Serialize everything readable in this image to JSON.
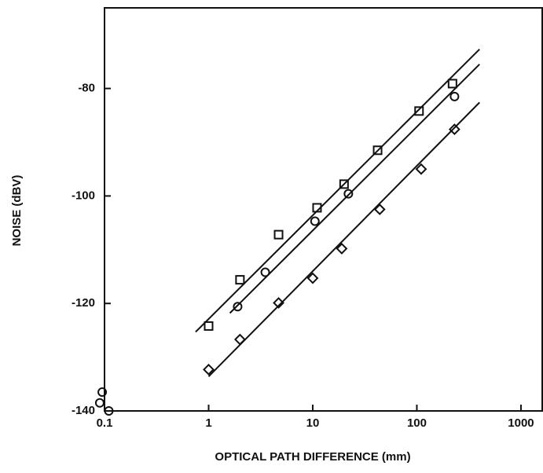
{
  "chart_data": {
    "type": "scatter",
    "xlabel": "OPTICAL PATH DIFFERENCE (mm)",
    "ylabel": "NOISE (dBV)",
    "xscale": "log",
    "xlim": [
      0.1,
      1600
    ],
    "ylim": [
      -140,
      -65
    ],
    "xticks": [
      0.1,
      1,
      10,
      100,
      1000
    ],
    "yticks": [
      -80,
      -100,
      -120,
      -140
    ],
    "color": "#111111",
    "series": [
      {
        "marker": "square",
        "x": [
          1,
          2,
          4.7,
          11,
          20,
          42,
          105,
          220
        ],
        "values": [
          -124.2,
          -115.6,
          -107.2,
          -102.2,
          -97.8,
          -91.5,
          -84.2,
          -79.1
        ],
        "fit": {
          "x": [
            0.75,
            400
          ],
          "values": [
            -125.3,
            -72.7
          ]
        }
      },
      {
        "marker": "circle",
        "x": [
          0.095,
          0.09,
          0.11,
          1.9,
          3.5,
          10.5,
          22,
          230
        ],
        "values": [
          -136.5,
          -138.5,
          -140,
          -120.6,
          -114.2,
          -104.7,
          -99.6,
          -81.5
        ],
        "fit": {
          "x": [
            1.6,
            400
          ],
          "values": [
            -121.8,
            -75.5
          ]
        }
      },
      {
        "marker": "diamond",
        "x": [
          1,
          2,
          4.7,
          10,
          19,
          44,
          110,
          230
        ],
        "values": [
          -132.3,
          -126.7,
          -119.9,
          -115.3,
          -109.8,
          -102.5,
          -95.0,
          -87.6
        ],
        "fit": {
          "x": [
            1,
            400
          ],
          "values": [
            -133.6,
            -82.6
          ]
        }
      }
    ]
  }
}
